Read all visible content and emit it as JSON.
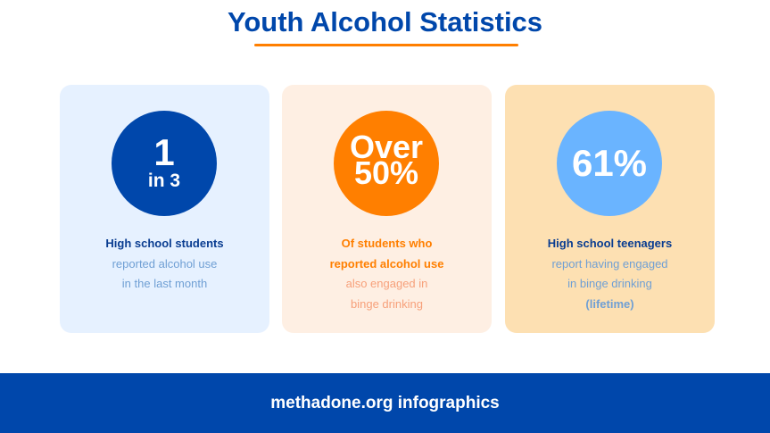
{
  "title": "Youth Alcohol Statistics",
  "colors": {
    "primary": "#0047ab",
    "accent": "#ff7f00",
    "light_blue": "#6ab4ff"
  },
  "cards": [
    {
      "stat_main": "1",
      "stat_sub": "in 3",
      "lines": [
        "High school students",
        "reported alcohol use",
        "in the last month"
      ]
    },
    {
      "stat_main": "Over",
      "stat_sub": "50%",
      "lines": [
        "Of students who",
        "reported alcohol use",
        "also engaged in",
        "binge drinking"
      ]
    },
    {
      "stat_main": "61%",
      "lines": [
        "High school teenagers",
        "report having engaged",
        "in binge drinking",
        "(lifetime)"
      ]
    }
  ],
  "footer": "methadone.org infographics"
}
